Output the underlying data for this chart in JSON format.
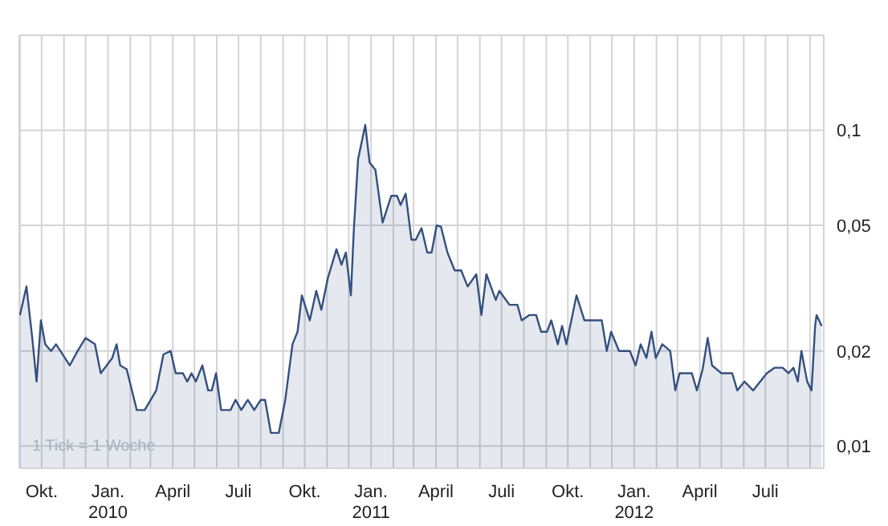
{
  "chart_data": {
    "type": "area",
    "log": true,
    "grid": true,
    "tick_labels": true,
    "xlim": [
      "2009-08-31",
      "2012-09-20"
    ],
    "xticks": [
      {
        "value": "2009-09-01",
        "label": null
      },
      {
        "value": "2009-10-01",
        "label": "Okt."
      },
      {
        "value": "2009-11-01",
        "label": null
      },
      {
        "value": "2009-12-01",
        "label": null
      },
      {
        "value": "2010-01-01",
        "label": "Jan.\n2010"
      },
      {
        "value": "2010-02-01",
        "label": null
      },
      {
        "value": "2010-03-01",
        "label": null
      },
      {
        "value": "2010-04-01",
        "label": "April"
      },
      {
        "value": "2010-05-01",
        "label": null
      },
      {
        "value": "2010-06-01",
        "label": null
      },
      {
        "value": "2010-07-01",
        "label": "Juli"
      },
      {
        "value": "2010-08-01",
        "label": null
      },
      {
        "value": "2010-09-01",
        "label": null
      },
      {
        "value": "2010-10-01",
        "label": "Okt."
      },
      {
        "value": "2010-11-01",
        "label": null
      },
      {
        "value": "2010-12-01",
        "label": null
      },
      {
        "value": "2011-01-01",
        "label": "Jan.\n2011"
      },
      {
        "value": "2011-02-01",
        "label": null
      },
      {
        "value": "2011-03-01",
        "label": null
      },
      {
        "value": "2011-04-01",
        "label": "April"
      },
      {
        "value": "2011-05-01",
        "label": null
      },
      {
        "value": "2011-06-01",
        "label": null
      },
      {
        "value": "2011-07-01",
        "label": "Juli"
      },
      {
        "value": "2011-08-01",
        "label": null
      },
      {
        "value": "2011-09-01",
        "label": null
      },
      {
        "value": "2011-10-01",
        "label": "Okt."
      },
      {
        "value": "2011-11-01",
        "label": null
      },
      {
        "value": "2011-12-01",
        "label": null
      },
      {
        "value": "2012-01-01",
        "label": "Jan.\n2012"
      },
      {
        "value": "2012-02-01",
        "label": null
      },
      {
        "value": "2012-03-01",
        "label": null
      },
      {
        "value": "2012-04-01",
        "label": "April"
      },
      {
        "value": "2012-05-01",
        "label": null
      },
      {
        "value": "2012-06-01",
        "label": null
      },
      {
        "value": "2012-07-01",
        "label": "Juli"
      },
      {
        "value": "2012-08-01",
        "label": null
      },
      {
        "value": "2012-09-01",
        "label": null
      }
    ],
    "ylim": [
      0.0085,
      0.2
    ],
    "yticks": [
      {
        "value": 0.01,
        "label": "0,01"
      },
      {
        "value": 0.02,
        "label": "0,02"
      },
      {
        "value": 0.05,
        "label": "0,05"
      },
      {
        "value": 0.1,
        "label": "0,1"
      }
    ],
    "annotations": [
      "1 Tick = 1 Woche"
    ],
    "series": [
      {
        "color": "#34507f",
        "x": [
          "2009-09-01",
          "2009-09-10",
          "2009-09-18",
          "2009-09-24",
          "2009-09-30",
          "2009-10-06",
          "2009-10-14",
          "2009-10-21",
          "2009-11-09",
          "2009-11-20",
          "2009-12-01",
          "2009-12-14",
          "2009-12-22",
          "2010-01-07",
          "2010-01-13",
          "2010-01-18",
          "2010-01-27",
          "2010-02-10",
          "2010-02-21",
          "2010-03-09",
          "2010-03-19",
          "2010-03-29",
          "2010-04-05",
          "2010-04-15",
          "2010-04-21",
          "2010-04-27",
          "2010-05-03",
          "2010-05-12",
          "2010-05-20",
          "2010-05-25",
          "2010-05-31",
          "2010-06-07",
          "2010-06-20",
          "2010-06-27",
          "2010-07-05",
          "2010-07-14",
          "2010-07-23",
          "2010-08-01",
          "2010-08-07",
          "2010-08-15",
          "2010-08-26",
          "2010-09-04",
          "2010-09-14",
          "2010-09-21",
          "2010-09-27",
          "2010-10-08",
          "2010-10-17",
          "2010-10-24",
          "2010-11-02",
          "2010-11-14",
          "2010-11-21",
          "2010-11-27",
          "2010-12-04",
          "2010-12-08",
          "2010-12-14",
          "2010-12-24",
          "2010-12-30",
          "2011-01-07",
          "2011-01-17",
          "2011-01-29",
          "2011-02-06",
          "2011-02-11",
          "2011-02-18",
          "2011-02-26",
          "2011-03-04",
          "2011-03-12",
          "2011-03-20",
          "2011-03-26",
          "2011-04-02",
          "2011-04-08",
          "2011-04-17",
          "2011-04-27",
          "2011-05-06",
          "2011-05-15",
          "2011-05-27",
          "2011-06-03",
          "2011-06-10",
          "2011-06-23",
          "2011-06-28",
          "2011-07-12",
          "2011-07-23",
          "2011-07-29",
          "2011-08-09",
          "2011-08-18",
          "2011-08-25",
          "2011-09-02",
          "2011-09-08",
          "2011-09-17",
          "2011-09-23",
          "2011-09-29",
          "2011-10-13",
          "2011-10-24",
          "2011-11-17",
          "2011-11-24",
          "2011-11-30",
          "2011-12-11",
          "2011-12-26",
          "2012-01-03",
          "2012-01-10",
          "2012-01-18",
          "2012-01-25",
          "2012-01-31",
          "2012-02-09",
          "2012-02-20",
          "2012-02-27",
          "2012-03-04",
          "2012-03-21",
          "2012-03-28",
          "2012-04-05",
          "2012-04-12",
          "2012-04-18",
          "2012-05-01",
          "2012-05-16",
          "2012-05-23",
          "2012-06-02",
          "2012-06-14",
          "2012-07-03",
          "2012-07-14",
          "2012-07-25",
          "2012-08-02",
          "2012-08-09",
          "2012-08-15",
          "2012-08-20",
          "2012-08-28",
          "2012-09-03",
          "2012-09-08",
          "2012-09-10",
          "2012-09-17"
        ],
        "values": [
          0.026,
          0.032,
          0.022,
          0.016,
          0.025,
          0.021,
          0.02,
          0.021,
          0.018,
          0.02,
          0.022,
          0.021,
          0.017,
          0.019,
          0.021,
          0.018,
          0.0175,
          0.013,
          0.013,
          0.015,
          0.0195,
          0.02,
          0.017,
          0.017,
          0.016,
          0.017,
          0.016,
          0.018,
          0.015,
          0.015,
          0.017,
          0.013,
          0.013,
          0.014,
          0.013,
          0.014,
          0.013,
          0.014,
          0.014,
          0.011,
          0.011,
          0.014,
          0.021,
          0.023,
          0.03,
          0.025,
          0.031,
          0.027,
          0.034,
          0.042,
          0.0375,
          0.041,
          0.03,
          0.048,
          0.081,
          0.104,
          0.079,
          0.075,
          0.051,
          0.062,
          0.062,
          0.058,
          0.063,
          0.045,
          0.045,
          0.049,
          0.041,
          0.041,
          0.05,
          0.0495,
          0.041,
          0.036,
          0.036,
          0.032,
          0.035,
          0.026,
          0.035,
          0.029,
          0.031,
          0.028,
          0.028,
          0.025,
          0.026,
          0.026,
          0.023,
          0.023,
          0.025,
          0.021,
          0.024,
          0.021,
          0.03,
          0.025,
          0.025,
          0.02,
          0.023,
          0.02,
          0.02,
          0.018,
          0.021,
          0.019,
          0.023,
          0.019,
          0.021,
          0.02,
          0.015,
          0.017,
          0.017,
          0.015,
          0.0175,
          0.022,
          0.018,
          0.017,
          0.017,
          0.015,
          0.016,
          0.015,
          0.017,
          0.0177,
          0.0177,
          0.017,
          0.0177,
          0.016,
          0.02,
          0.016,
          0.015,
          0.024,
          0.026,
          0.024
        ]
      }
    ]
  }
}
